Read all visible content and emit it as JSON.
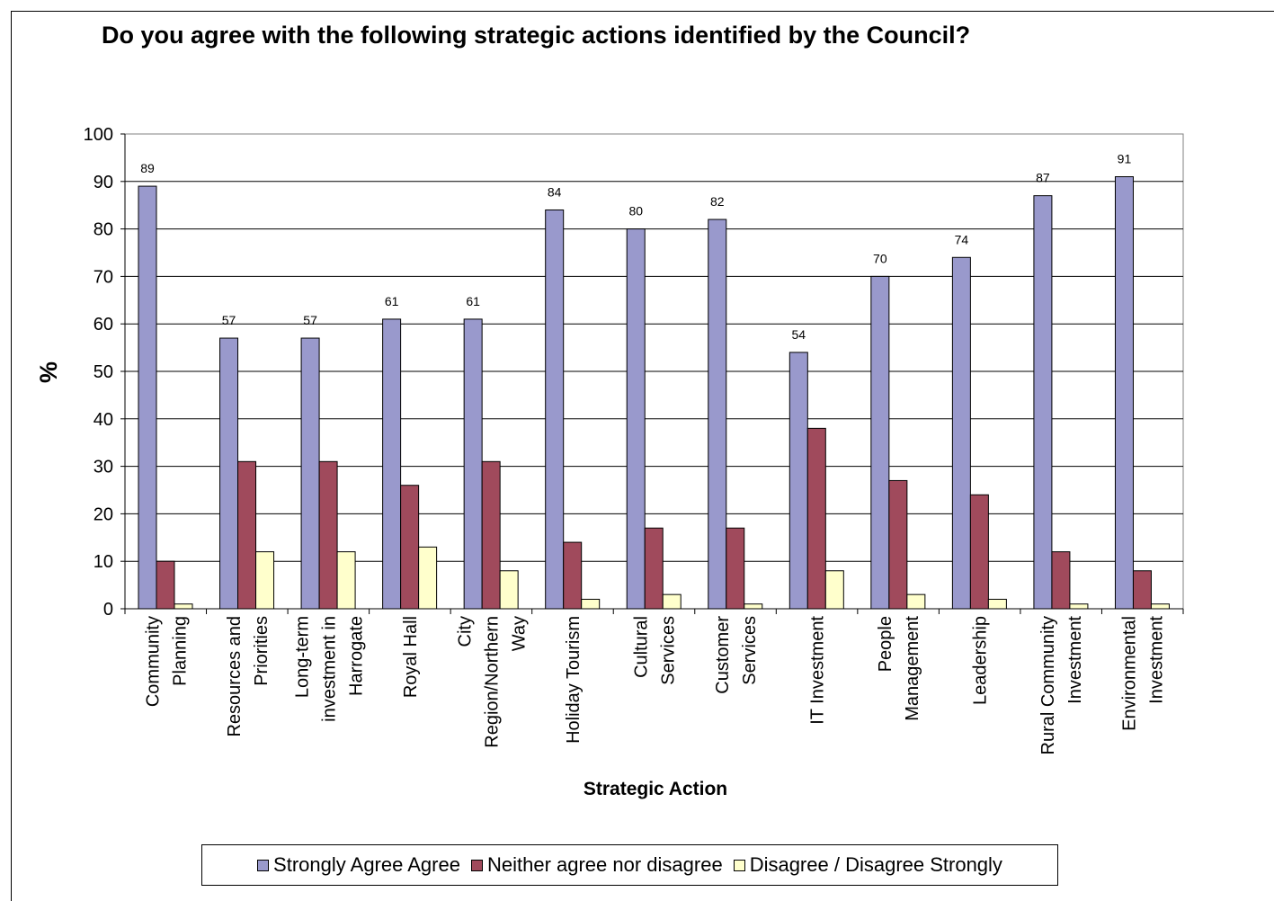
{
  "chart_data": {
    "type": "bar",
    "title": "Do you agree with the following strategic actions identified by the Council?",
    "xlabel": "Strategic Action",
    "ylabel": "%",
    "ylim": [
      0,
      100
    ],
    "yticks": [
      "0",
      "10",
      "20",
      "30",
      "40",
      "50",
      "60",
      "70",
      "80",
      "90",
      "100"
    ],
    "grid": true,
    "legend_position": "bottom",
    "categories": [
      [
        "Community",
        "Planning"
      ],
      [
        "Resources and",
        "Priorities"
      ],
      [
        "Long-term",
        "investment in",
        "Harrogate"
      ],
      [
        "Royal Hall"
      ],
      [
        "City",
        "Region/Northern",
        "Way"
      ],
      [
        "Holiday Tourism"
      ],
      [
        "Cultural",
        "Services"
      ],
      [
        "Customer",
        "Services"
      ],
      [
        "IT Investment"
      ],
      [
        "People",
        "Management"
      ],
      [
        "Leadership"
      ],
      [
        "Rural Community",
        "Investment"
      ],
      [
        "Environmental",
        "Investment"
      ]
    ],
    "series": [
      {
        "name": "Strongly Agree Agree",
        "color": "#9999cc",
        "values": [
          89,
          57,
          57,
          61,
          61,
          84,
          80,
          82,
          54,
          70,
          74,
          87,
          91
        ],
        "labels": [
          "89",
          "57",
          "57",
          "61",
          "61",
          "84",
          "80",
          "82",
          "54",
          "70",
          "74",
          "87",
          "91"
        ]
      },
      {
        "name": "Neither agree nor disagree",
        "color": "#a04a5c",
        "values": [
          10,
          31,
          31,
          26,
          31,
          14,
          17,
          17,
          38,
          27,
          24,
          12,
          8
        ]
      },
      {
        "name": "Disagree / Disagree Strongly",
        "color": "#ffffcc",
        "values": [
          1,
          12,
          12,
          13,
          8,
          2,
          3,
          1,
          8,
          3,
          2,
          1,
          1
        ]
      }
    ]
  }
}
